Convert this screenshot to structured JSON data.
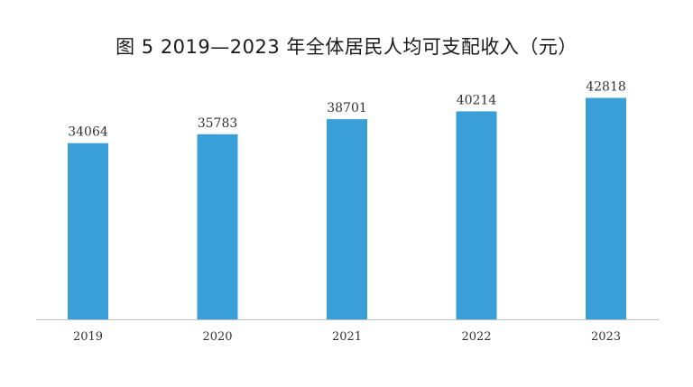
{
  "chart_data": {
    "type": "bar",
    "title": "图 5  2019—2023 年全体居民人均可支配收入（元）",
    "categories": [
      "2019",
      "2020",
      "2021",
      "2022",
      "2023"
    ],
    "values": [
      34064,
      35783,
      38701,
      40214,
      42818
    ],
    "data_labels": [
      "34064",
      "35783",
      "38701",
      "40214",
      "42818"
    ],
    "xlabel": "",
    "ylabel": "",
    "ylim": [
      0,
      45000
    ],
    "grid": false,
    "legend": "none",
    "bar_color": "#3a9fd9",
    "axis_color": "#bfbfbf"
  }
}
